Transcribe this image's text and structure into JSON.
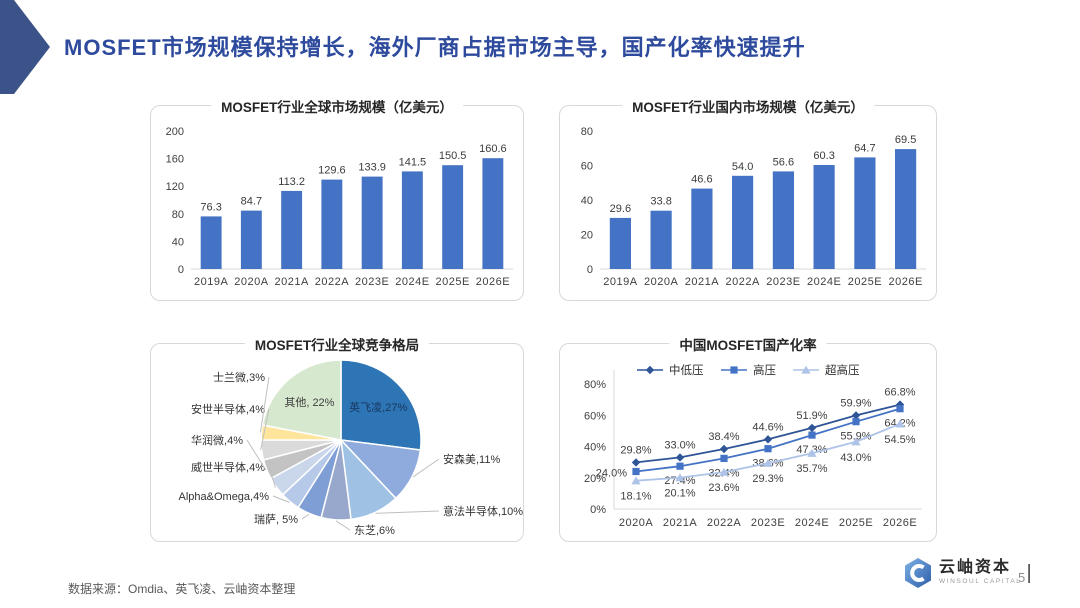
{
  "header": {
    "title": "MOSFET市场规模保持增长，海外厂商占据市场主导，国产化率快速提升",
    "title_color": "#2E4A9D",
    "arrow_color": "#3C5389"
  },
  "chart_data": [
    {
      "type": "bar",
      "title": "MOSFET行业全球市场规模（亿美元）",
      "categories": [
        "2019A",
        "2020A",
        "2021A",
        "2022A",
        "2023E",
        "2024E",
        "2025E",
        "2026E"
      ],
      "values": [
        76.3,
        84.7,
        113.2,
        129.6,
        133.9,
        141.5,
        150.5,
        160.6
      ],
      "ylim": [
        0,
        200
      ],
      "yticks": [
        0,
        40,
        80,
        120,
        160,
        200
      ],
      "bar_color": "#4473C5",
      "grid": false,
      "value_labels": true
    },
    {
      "type": "bar",
      "title": "MOSFET行业国内市场规模（亿美元）",
      "categories": [
        "2019A",
        "2020A",
        "2021A",
        "2022A",
        "2023E",
        "2024E",
        "2025E",
        "2026E"
      ],
      "values": [
        29.6,
        33.8,
        46.6,
        54.0,
        56.6,
        60.3,
        64.7,
        69.5
      ],
      "ylim": [
        0,
        80
      ],
      "yticks": [
        0,
        20,
        40,
        60,
        80
      ],
      "bar_color": "#4473C5",
      "grid": false,
      "value_labels": true
    },
    {
      "type": "pie",
      "title": "MOSFET行业全球竞争格局",
      "start_angle": 0,
      "direction": "clockwise",
      "slices": [
        {
          "label": "英飞凌",
          "value": 27,
          "text": "英飞凌,27%",
          "color": "#2E75B6",
          "label_placement": "inside"
        },
        {
          "label": "安森美",
          "value": 11,
          "text": "安森美,11%",
          "color": "#8FAADC",
          "label_placement": "right"
        },
        {
          "label": "意法半导体",
          "value": 10,
          "text": "意法半导体,10%",
          "color": "#9FC1E4",
          "label_placement": "right"
        },
        {
          "label": "东芝",
          "value": 6,
          "text": "东芝,6%",
          "color": "#97A8CC",
          "label_placement": "bottom"
        },
        {
          "label": "瑞萨",
          "value": 5,
          "text": "瑞萨, 5%",
          "color": "#7F9ED6",
          "label_placement": "left"
        },
        {
          "label": "Alpha&Omega",
          "value": 4,
          "text": "Alpha&Omega,4%",
          "color": "#B7C9E9",
          "label_placement": "left"
        },
        {
          "label": "威世半导体",
          "value": 4,
          "text": "威世半导体,4%",
          "color": "#CAD7EB",
          "label_placement": "left"
        },
        {
          "label": "华润微",
          "value": 4,
          "text": "华润微,4%",
          "color": "#C3C3C3",
          "label_placement": "left"
        },
        {
          "label": "安世半导体",
          "value": 4,
          "text": "安世半导体,4%",
          "color": "#DADADA",
          "label_placement": "left"
        },
        {
          "label": "士兰微",
          "value": 3,
          "text": "士兰微,3%",
          "color": "#FFE49B",
          "label_placement": "left"
        },
        {
          "label": "其他",
          "value": 22,
          "text": "其他, 22%",
          "color": "#D6E8CD",
          "label_placement": "inside"
        }
      ]
    },
    {
      "type": "line",
      "title": "中国MOSFET国产化率",
      "categories": [
        "2020A",
        "2021A",
        "2022A",
        "2023E",
        "2024E",
        "2025E",
        "2026E"
      ],
      "series": [
        {
          "name": "中低压",
          "marker": "diamond",
          "color": "#2F5597",
          "values": [
            29.8,
            33.0,
            38.4,
            44.6,
            51.9,
            59.9,
            66.8
          ]
        },
        {
          "name": "高压",
          "marker": "square",
          "color": "#4473C5",
          "values": [
            24.0,
            27.4,
            32.4,
            38.6,
            47.3,
            55.9,
            64.2
          ]
        },
        {
          "name": "超高压",
          "marker": "triangle",
          "color": "#AEC3E8",
          "values": [
            18.1,
            20.1,
            23.6,
            29.3,
            35.7,
            43.0,
            54.5
          ]
        }
      ],
      "ylim": [
        0,
        80
      ],
      "yticks": [
        "0%",
        "20%",
        "40%",
        "60%",
        "80%"
      ],
      "legend_position": "top",
      "grid": false
    }
  ],
  "footer": {
    "source": "数据来源：Omdia、英飞凌、云岫资本整理",
    "logo_name": "云岫资本",
    "logo_subtitle": "WINSOUL CAPITAL",
    "logo_divider": "|",
    "page_number": "5"
  }
}
